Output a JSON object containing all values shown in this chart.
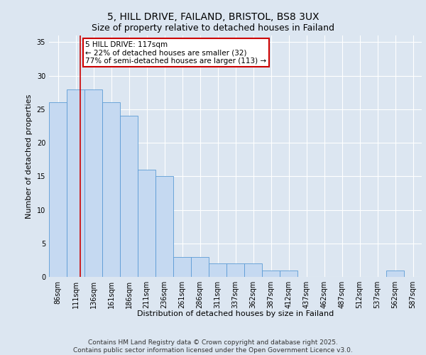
{
  "title1": "5, HILL DRIVE, FAILAND, BRISTOL, BS8 3UX",
  "title2": "Size of property relative to detached houses in Failand",
  "xlabel": "Distribution of detached houses by size in Failand",
  "ylabel": "Number of detached properties",
  "categories": [
    "86sqm",
    "111sqm",
    "136sqm",
    "161sqm",
    "186sqm",
    "211sqm",
    "236sqm",
    "261sqm",
    "286sqm",
    "311sqm",
    "337sqm",
    "362sqm",
    "387sqm",
    "412sqm",
    "437sqm",
    "462sqm",
    "487sqm",
    "512sqm",
    "537sqm",
    "562sqm",
    "587sqm"
  ],
  "values": [
    26,
    28,
    28,
    26,
    24,
    16,
    15,
    3,
    3,
    2,
    2,
    2,
    1,
    1,
    0,
    0,
    0,
    0,
    0,
    1,
    0
  ],
  "bar_color": "#c5d9f1",
  "bar_edge_color": "#5b9bd5",
  "bar_width": 1.0,
  "background_color": "#dce6f1",
  "plot_background_color": "#dce6f1",
  "grid_color": "#ffffff",
  "ylim": [
    0,
    36
  ],
  "yticks": [
    0,
    5,
    10,
    15,
    20,
    25,
    30,
    35
  ],
  "marker_label": "5 HILL DRIVE: 117sqm",
  "annotation_line1": "← 22% of detached houses are smaller (32)",
  "annotation_line2": "77% of semi-detached houses are larger (113) →",
  "annotation_box_color": "#ffffff",
  "annotation_box_edge_color": "#cc0000",
  "marker_line_color": "#cc0000",
  "footer1": "Contains HM Land Registry data © Crown copyright and database right 2025.",
  "footer2": "Contains public sector information licensed under the Open Government Licence v3.0.",
  "title_fontsize": 10,
  "subtitle_fontsize": 9,
  "axis_label_fontsize": 8,
  "tick_fontsize": 7,
  "annotation_fontsize": 7.5,
  "footer_fontsize": 6.5
}
